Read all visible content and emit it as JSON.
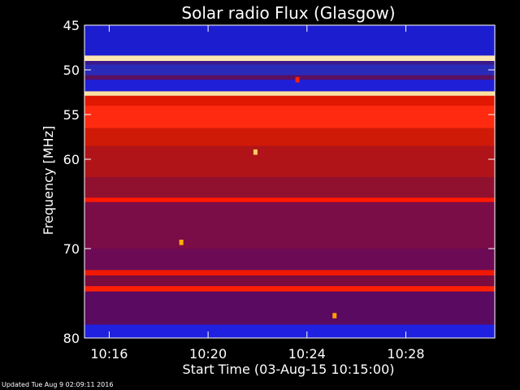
{
  "footer": {
    "updated_text": "Updated Tue Aug  9 02:09:11 2016"
  },
  "chart_data": {
    "type": "heatmap",
    "title": "Solar radio Flux (Glasgow)",
    "xlabel": "Start Time (03-Aug-15 10:15:00)",
    "ylabel": "Frequency [MHz]",
    "x_unit": "minutes after 10:15:00",
    "xlim": [
      0,
      16.6
    ],
    "ylim": [
      80,
      45
    ],
    "x_ticks": [
      {
        "value": 1,
        "label": "10:16"
      },
      {
        "value": 5,
        "label": "10:20"
      },
      {
        "value": 9,
        "label": "10:24"
      },
      {
        "value": 13,
        "label": "10:28"
      }
    ],
    "y_ticks": [
      {
        "value": 45,
        "label": "45"
      },
      {
        "value": 50,
        "label": "50"
      },
      {
        "value": 55,
        "label": "55"
      },
      {
        "value": 60,
        "label": "60"
      },
      {
        "value": 70,
        "label": "70"
      },
      {
        "value": 80,
        "label": "80"
      }
    ],
    "colors": {
      "background": "#000000",
      "axes": "#ffffff",
      "low_intensity": "#1a1aff",
      "mid_intensity": "#8a0a5a",
      "high_intensity": "#ff2200",
      "peak_intensity": "#ffe6b0"
    },
    "bands": [
      {
        "from": 45,
        "to": 48.4,
        "color": "#1d1dd0"
      },
      {
        "from": 48.4,
        "to": 49.0,
        "color": "#ffe6b0"
      },
      {
        "from": 49.0,
        "to": 49.4,
        "color": "#3a1a8a"
      },
      {
        "from": 49.4,
        "to": 50.6,
        "color": "#2a2ab8"
      },
      {
        "from": 50.6,
        "to": 51.1,
        "color": "#5a1060"
      },
      {
        "from": 51.1,
        "to": 52.4,
        "color": "#1f1fd8"
      },
      {
        "from": 52.4,
        "to": 52.9,
        "color": "#ffe0a0"
      },
      {
        "from": 52.9,
        "to": 54.0,
        "color": "#e01800"
      },
      {
        "from": 54.0,
        "to": 56.5,
        "color": "#ff2a10"
      },
      {
        "from": 56.5,
        "to": 58.5,
        "color": "#d01a08"
      },
      {
        "from": 58.5,
        "to": 62.0,
        "color": "#b01418"
      },
      {
        "from": 62.0,
        "to": 64.3,
        "color": "#901030"
      },
      {
        "from": 64.3,
        "to": 64.8,
        "color": "#ff1a00"
      },
      {
        "from": 64.8,
        "to": 70.0,
        "color": "#7a0c48"
      },
      {
        "from": 70.0,
        "to": 72.4,
        "color": "#6c0a55"
      },
      {
        "from": 72.4,
        "to": 73.0,
        "color": "#f01800"
      },
      {
        "from": 73.0,
        "to": 74.2,
        "color": "#7a0c40"
      },
      {
        "from": 74.2,
        "to": 74.8,
        "color": "#ff2000"
      },
      {
        "from": 74.8,
        "to": 78.5,
        "color": "#5a0a60"
      },
      {
        "from": 78.5,
        "to": 80,
        "color": "#2020e0"
      }
    ],
    "bursts": [
      {
        "time": 3.9,
        "freq_from": 69.0,
        "freq_to": 69.6,
        "color": "#ffb000"
      },
      {
        "time": 6.9,
        "freq_from": 58.9,
        "freq_to": 59.5,
        "color": "#ffcc60"
      },
      {
        "time": 8.6,
        "freq_from": 50.8,
        "freq_to": 51.4,
        "color": "#ff2000"
      },
      {
        "time": 10.1,
        "freq_from": 77.2,
        "freq_to": 77.8,
        "color": "#ffa000"
      }
    ]
  }
}
